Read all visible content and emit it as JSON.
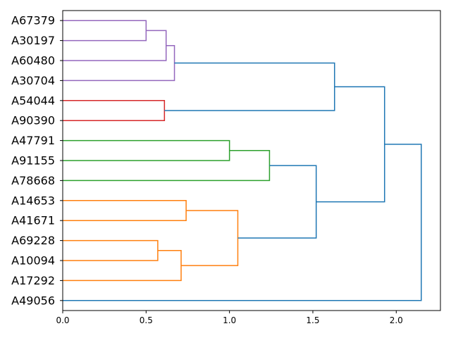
{
  "chart_data": {
    "type": "dendrogram",
    "orientation": "horizontal",
    "xlim": [
      0,
      2.265
    ],
    "x_ticks": [
      "0.0",
      "0.5",
      "1.0",
      "1.5",
      "2.0"
    ],
    "x_tick_values": [
      0,
      0.5,
      1.0,
      1.5,
      2.0
    ],
    "grid": false,
    "leaves": [
      "A67379",
      "A30197",
      "A60480",
      "A30704",
      "A54044",
      "A90390",
      "A47791",
      "A91155",
      "A78668",
      "A14653",
      "A41671",
      "A69228",
      "A10094",
      "A17292",
      "A49056"
    ],
    "merges": [
      {
        "a": "A67379",
        "b": "A30197",
        "height": 0.5,
        "id": "m1",
        "color": "#9467bd"
      },
      {
        "a": "m1",
        "b": "A60480",
        "height": 0.62,
        "id": "m2",
        "color": "#9467bd"
      },
      {
        "a": "m2",
        "b": "A30704",
        "height": 0.67,
        "id": "m3",
        "color": "#9467bd"
      },
      {
        "a": "A54044",
        "b": "A90390",
        "height": 0.61,
        "id": "m4",
        "color": "#d62728"
      },
      {
        "a": "m3",
        "b": "m4",
        "height": 1.63,
        "id": "m5",
        "color": "#1f77b4"
      },
      {
        "a": "A47791",
        "b": "A91155",
        "height": 1.0,
        "id": "m6",
        "color": "#2ca02c"
      },
      {
        "a": "m6",
        "b": "A78668",
        "height": 1.24,
        "id": "m7",
        "color": "#2ca02c"
      },
      {
        "a": "A14653",
        "b": "A41671",
        "height": 0.74,
        "id": "m8",
        "color": "#ff7f0e"
      },
      {
        "a": "A69228",
        "b": "A10094",
        "height": 0.57,
        "id": "m9",
        "color": "#ff7f0e"
      },
      {
        "a": "m9",
        "b": "A17292",
        "height": 0.71,
        "id": "m10",
        "color": "#ff7f0e"
      },
      {
        "a": "m8",
        "b": "m10",
        "height": 1.05,
        "id": "m11",
        "color": "#ff7f0e"
      },
      {
        "a": "m7",
        "b": "m11",
        "height": 1.52,
        "id": "m12",
        "color": "#1f77b4"
      },
      {
        "a": "m5",
        "b": "m12",
        "height": 1.93,
        "id": "m13",
        "color": "#1f77b4"
      },
      {
        "a": "m13",
        "b": "A49056",
        "height": 2.15,
        "id": "m14",
        "color": "#1f77b4"
      }
    ],
    "colors": {
      "purple_cluster": "#9467bd",
      "red_cluster": "#d62728",
      "green_cluster": "#2ca02c",
      "orange_cluster": "#ff7f0e",
      "above_threshold": "#1f77b4"
    }
  }
}
